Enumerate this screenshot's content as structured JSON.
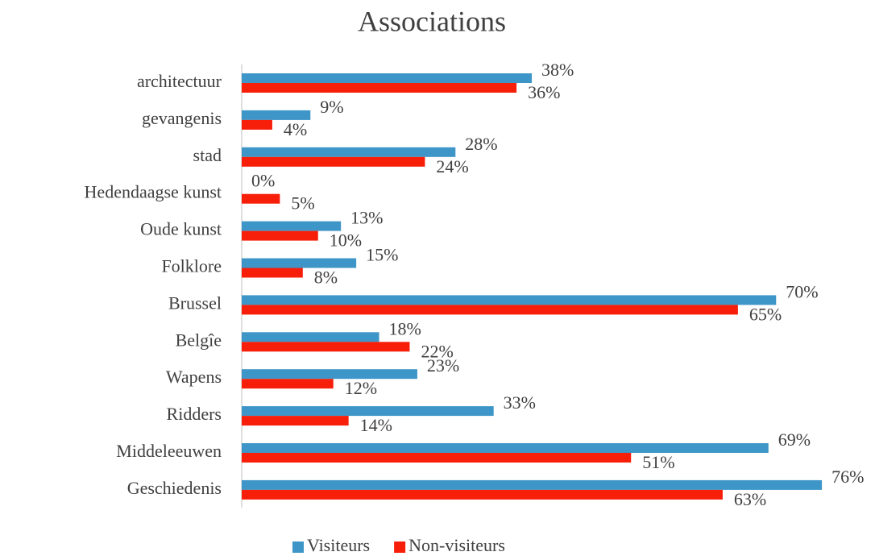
{
  "chart_data": {
    "type": "hbar",
    "title": "Associations",
    "categories": [
      "architectuur",
      "gevangenis",
      "stad",
      "Hedendaagse kunst",
      "Oude kunst",
      "Folklore",
      "Brussel",
      "Belgîe",
      "Wapens",
      "Ridders",
      "Middeleeuwen",
      "Geschiedenis"
    ],
    "series": [
      {
        "name": "Visiteurs",
        "color": "#3e95c7",
        "values": [
          38,
          9,
          28,
          0,
          13,
          15,
          70,
          18,
          23,
          33,
          69,
          76
        ],
        "value_labels": [
          "38%",
          "9%",
          "28%",
          "0%",
          "13%",
          "15%",
          "70%",
          "18%",
          "23%",
          "33%",
          "69%",
          "76%"
        ]
      },
      {
        "name": "Non-visiteurs",
        "color": "#f71e0a",
        "values": [
          36,
          4,
          24,
          5,
          10,
          8,
          65,
          22,
          12,
          14,
          51,
          63
        ],
        "value_labels": [
          "36%",
          "4%",
          "24%",
          "5%",
          "10%",
          "8%",
          "65%",
          "22%",
          "12%",
          "14%",
          "51%",
          "63%"
        ]
      }
    ],
    "xlim": [
      0,
      80
    ],
    "legend": "bottom"
  }
}
